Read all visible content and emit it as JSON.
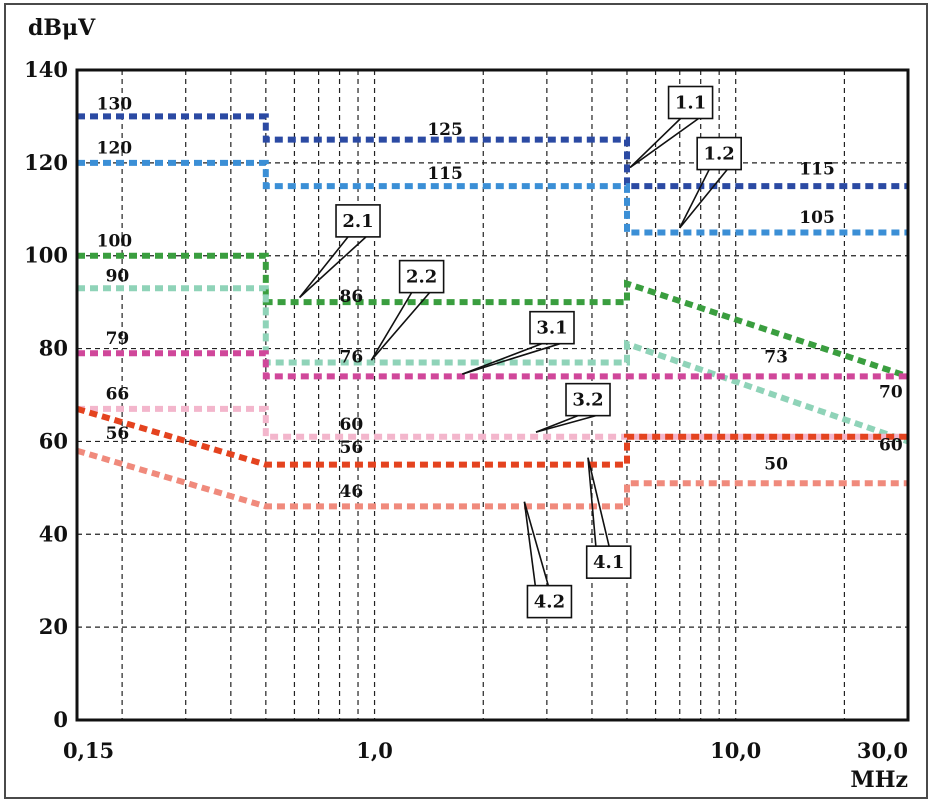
{
  "chart_data": {
    "type": "line",
    "ylabel": "dBμV",
    "xlabel": "MHz",
    "x_scale": "log",
    "xlim": [
      0.15,
      30
    ],
    "ylim": [
      0,
      140
    ],
    "grid": true,
    "y_ticks": [
      0,
      20,
      40,
      60,
      80,
      100,
      120,
      140
    ],
    "y_tick_labels": [
      "0",
      "20",
      "40",
      "60",
      "80",
      "100",
      "120",
      "140"
    ],
    "x_ticks": [
      0.15,
      1,
      10,
      30
    ],
    "x_tick_labels": [
      "0,15",
      "1,0",
      "10,0",
      "30,0"
    ],
    "series": [
      {
        "name": "1.1",
        "color": "#2b4aa3",
        "points": [
          [
            0.15,
            130
          ],
          [
            0.5,
            130
          ],
          [
            0.5,
            125
          ],
          [
            5,
            125
          ],
          [
            5,
            115
          ],
          [
            30,
            115
          ]
        ]
      },
      {
        "name": "1.2",
        "color": "#3b8fd6",
        "points": [
          [
            0.15,
            120
          ],
          [
            0.5,
            120
          ],
          [
            0.5,
            115
          ],
          [
            5,
            115
          ],
          [
            5,
            105
          ],
          [
            30,
            105
          ]
        ]
      },
      {
        "name": "2.1",
        "color": "#3a9e3f",
        "points": [
          [
            0.15,
            100
          ],
          [
            0.5,
            100
          ],
          [
            0.5,
            90
          ],
          [
            5,
            90
          ],
          [
            5,
            94
          ],
          [
            30,
            74
          ]
        ]
      },
      {
        "name": "2.2",
        "color": "#8fd3b8",
        "points": [
          [
            0.15,
            93
          ],
          [
            0.5,
            93
          ],
          [
            0.5,
            77
          ],
          [
            5,
            77
          ],
          [
            5,
            81
          ],
          [
            30,
            60
          ]
        ]
      },
      {
        "name": "3.1",
        "color": "#d0479a",
        "points": [
          [
            0.15,
            79
          ],
          [
            0.5,
            79
          ],
          [
            0.5,
            74
          ],
          [
            30,
            74
          ]
        ]
      },
      {
        "name": "3.2",
        "color": "#f3b6cc",
        "points": [
          [
            0.15,
            67
          ],
          [
            0.5,
            67
          ],
          [
            0.5,
            61
          ],
          [
            30,
            61
          ]
        ]
      },
      {
        "name": "4.1",
        "color": "#e4431f",
        "points": [
          [
            0.15,
            67
          ],
          [
            0.5,
            55
          ],
          [
            5,
            55
          ],
          [
            5,
            61
          ],
          [
            30,
            61
          ]
        ]
      },
      {
        "name": "4.2",
        "color": "#f08a7c",
        "points": [
          [
            0.15,
            58
          ],
          [
            0.5,
            46
          ],
          [
            5,
            46
          ],
          [
            5,
            51
          ],
          [
            30,
            51
          ]
        ]
      }
    ],
    "value_labels": [
      {
        "text": "130",
        "x": 0.17,
        "y": 131.5
      },
      {
        "text": "120",
        "x": 0.17,
        "y": 122
      },
      {
        "text": "125",
        "x": 1.4,
        "y": 126
      },
      {
        "text": "115",
        "x": 1.4,
        "y": 116.5
      },
      {
        "text": "115",
        "x": 15,
        "y": 117.5
      },
      {
        "text": "105",
        "x": 15,
        "y": 107
      },
      {
        "text": "100",
        "x": 0.17,
        "y": 102
      },
      {
        "text": "90",
        "x": 0.18,
        "y": 94.5
      },
      {
        "text": "86",
        "x": 0.8,
        "y": 90
      },
      {
        "text": "76",
        "x": 0.8,
        "y": 77
      },
      {
        "text": "79",
        "x": 0.18,
        "y": 81
      },
      {
        "text": "73",
        "x": 12,
        "y": 77
      },
      {
        "text": "70",
        "x": 29,
        "y": 69.5
      },
      {
        "text": "66",
        "x": 0.18,
        "y": 69
      },
      {
        "text": "60",
        "x": 0.8,
        "y": 62.5
      },
      {
        "text": "60",
        "x": 29,
        "y": 58
      },
      {
        "text": "56",
        "x": 0.18,
        "y": 60.5
      },
      {
        "text": "56",
        "x": 0.8,
        "y": 57.5
      },
      {
        "text": "50",
        "x": 12,
        "y": 54
      },
      {
        "text": "46",
        "x": 0.8,
        "y": 48
      }
    ],
    "callouts": [
      {
        "text": "1.1",
        "box": [
          7.5,
          133
        ],
        "target": [
          5.1,
          119
        ]
      },
      {
        "text": "1.2",
        "box": [
          9,
          122
        ],
        "target": [
          7,
          106
        ]
      },
      {
        "text": "2.1",
        "box": [
          0.9,
          107.5
        ],
        "target": [
          0.62,
          91
        ]
      },
      {
        "text": "2.2",
        "box": [
          1.35,
          95.5
        ],
        "target": [
          0.98,
          77.5
        ]
      },
      {
        "text": "3.1",
        "box": [
          3.1,
          84.5
        ],
        "target": [
          1.75,
          74.5
        ]
      },
      {
        "text": "3.2",
        "box": [
          3.9,
          69
        ],
        "target": [
          2.8,
          62
        ]
      },
      {
        "text": "4.1",
        "box": [
          4.45,
          34
        ],
        "target": [
          3.9,
          56.5
        ]
      },
      {
        "text": "4.2",
        "box": [
          3.05,
          25.5
        ],
        "target": [
          2.6,
          47
        ]
      }
    ]
  }
}
